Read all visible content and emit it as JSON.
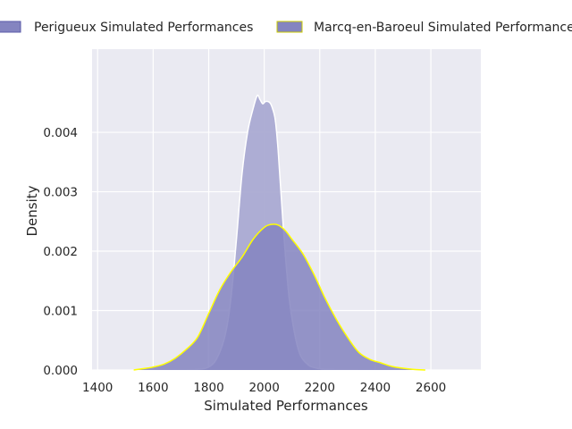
{
  "chart_data": {
    "type": "area",
    "xlabel": "Simulated Performances",
    "ylabel": "Density",
    "xlim": [
      1380,
      2780
    ],
    "ylim": [
      0,
      0.0054
    ],
    "xticks": [
      1400,
      1600,
      1800,
      2000,
      2200,
      2400,
      2600
    ],
    "yticks": [
      0.0,
      0.001,
      0.002,
      0.003,
      0.004
    ],
    "ytick_labels": [
      "0.000",
      "0.001",
      "0.002",
      "0.003",
      "0.004"
    ],
    "grid": true,
    "legend_placement": "top",
    "series": [
      {
        "name": "Perigueux Simulated Performances",
        "fill": "#aaaad2",
        "edge": "#ffffff",
        "x": [
          1720,
          1760,
          1800,
          1830,
          1860,
          1880,
          1900,
          1920,
          1940,
          1960,
          1975,
          1985,
          1995,
          2005,
          2020,
          2030,
          2040,
          2050,
          2060,
          2075,
          2090,
          2110,
          2130,
          2160,
          2190,
          2220,
          2260,
          2300,
          2340
        ],
        "y": [
          0.0,
          1e-05,
          5e-05,
          0.0002,
          0.0006,
          0.0012,
          0.0022,
          0.0033,
          0.004,
          0.0044,
          0.00462,
          0.00455,
          0.00448,
          0.00452,
          0.0045,
          0.0044,
          0.0042,
          0.0037,
          0.003,
          0.002,
          0.0012,
          0.0006,
          0.00025,
          8e-05,
          3e-05,
          1e-05,
          4e-06,
          1e-06,
          0.0
        ]
      },
      {
        "name": "Marcq-en-Baroeul Simulated Performances",
        "fill": "#8484c0",
        "edge": "#ffff00",
        "x": [
          1530,
          1560,
          1600,
          1640,
          1680,
          1720,
          1760,
          1800,
          1840,
          1880,
          1920,
          1960,
          2000,
          2025,
          2050,
          2075,
          2100,
          2140,
          2180,
          2220,
          2260,
          2300,
          2340,
          2380,
          2420,
          2460,
          2500,
          2540,
          2580
        ],
        "y": [
          0.0,
          2e-05,
          5e-05,
          0.0001,
          0.0002,
          0.00035,
          0.00055,
          0.00095,
          0.00135,
          0.00165,
          0.0019,
          0.0022,
          0.0024,
          0.00245,
          0.00244,
          0.00235,
          0.0022,
          0.00195,
          0.0016,
          0.0012,
          0.00085,
          0.00055,
          0.0003,
          0.00018,
          0.00012,
          6e-05,
          3e-05,
          1e-05,
          0.0
        ]
      }
    ]
  }
}
